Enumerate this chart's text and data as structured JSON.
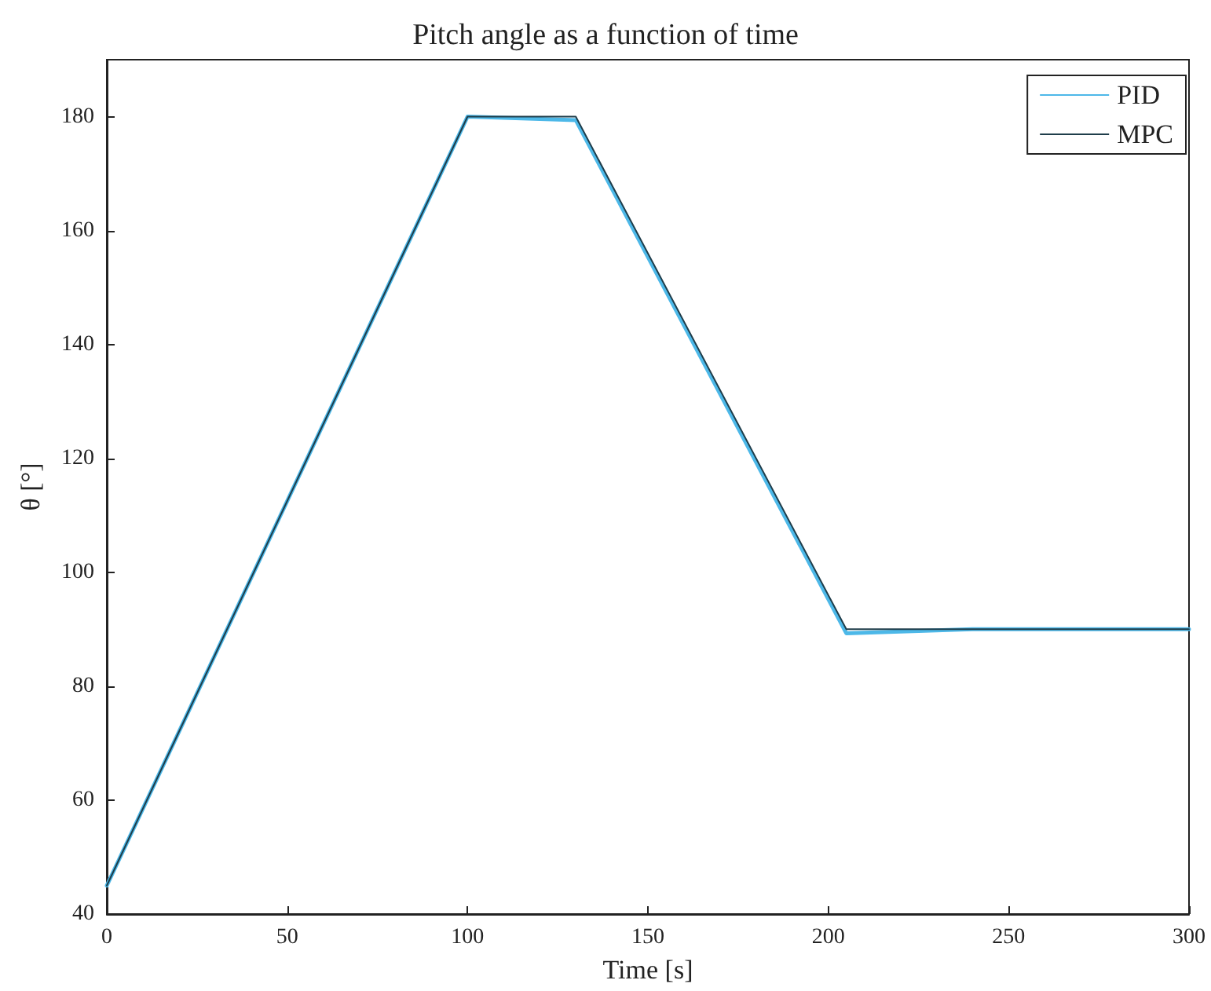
{
  "chart_data": {
    "type": "line",
    "title": "Pitch angle as a function of time",
    "xlabel": "Time [s]",
    "ylabel": "θ [°]",
    "xlim": [
      0,
      300
    ],
    "xticks": [
      0,
      50,
      100,
      150,
      200,
      250,
      300
    ],
    "ylim": [
      40,
      190
    ],
    "yticks": [
      40,
      60,
      80,
      100,
      120,
      140,
      160,
      180
    ],
    "grid": false,
    "legend": "top right",
    "marker": "none",
    "line_style": "solid",
    "series": [
      {
        "name": "PID",
        "color": "#4db8e8",
        "x": [
          0,
          100,
          130,
          205,
          240,
          300
        ],
        "values": [
          45,
          180,
          179.4,
          89.3,
          90,
          90
        ]
      },
      {
        "name": "MPC",
        "color": "#1f3d4a",
        "x": [
          0,
          100,
          130,
          205,
          300
        ],
        "values": [
          45,
          180,
          180,
          90,
          90
        ]
      }
    ]
  }
}
